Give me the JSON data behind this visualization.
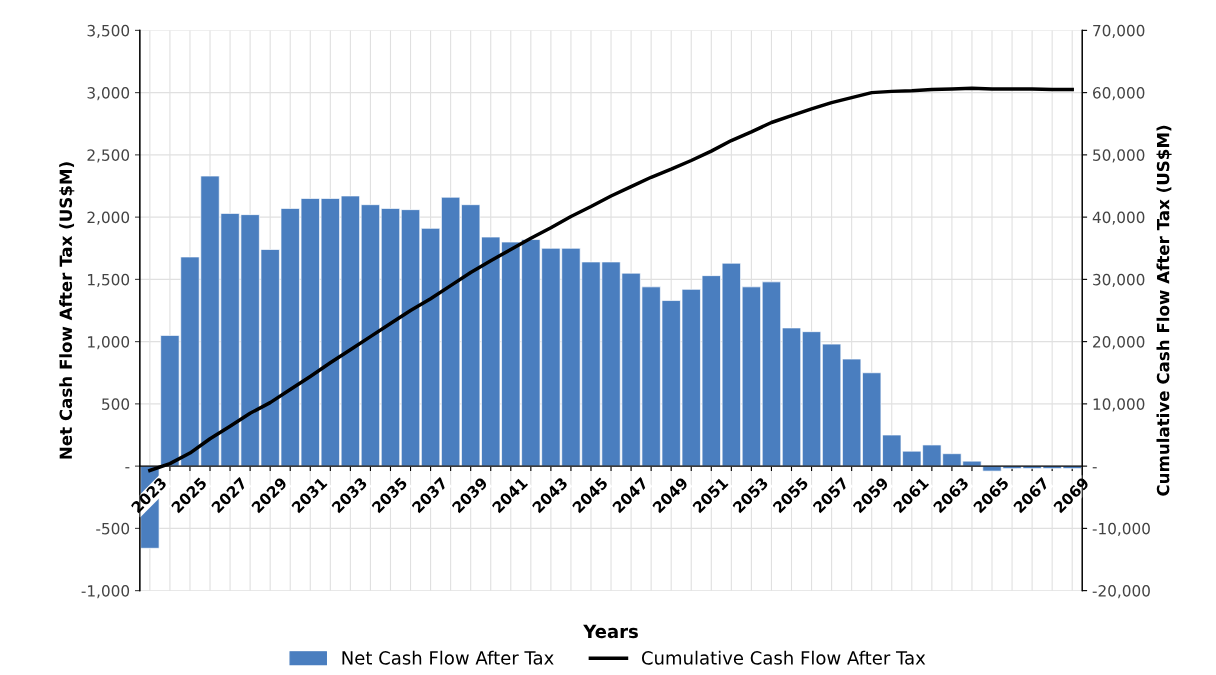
{
  "chart_data": {
    "type": "bar",
    "xlabel": "Years",
    "ylabel": "Net Cash Flow After Tax (US$M)",
    "y2label": "Cumulative Cash Flow After Tax (US$M)",
    "categories": [
      "2023",
      null,
      "2025",
      null,
      "2027",
      null,
      "2029",
      null,
      "2031",
      null,
      "2033",
      null,
      "2035",
      null,
      "2037",
      null,
      "2039",
      null,
      "2041",
      null,
      "2043",
      null,
      "2045",
      null,
      "2047",
      null,
      "2049",
      null,
      "2051",
      null,
      "2053",
      null,
      "2055",
      null,
      "2057",
      null,
      "2059",
      null,
      "2061",
      null,
      "2063",
      null,
      "2065",
      null,
      "2067",
      null,
      "2069"
    ],
    "series": [
      {
        "name": "Net Cash Flow After Tax",
        "color": "#4a7ebf",
        "values": [
          -660,
          1050,
          1680,
          2330,
          2030,
          2020,
          1740,
          2070,
          2150,
          2150,
          2170,
          2100,
          2070,
          2060,
          1910,
          2160,
          2100,
          1840,
          1800,
          1820,
          1750,
          1750,
          1640,
          1640,
          1550,
          1440,
          1330,
          1420,
          1530,
          1630,
          1440,
          1480,
          1110,
          1080,
          980,
          860,
          750,
          250,
          120,
          170,
          100,
          40,
          -40,
          -20,
          -20,
          -20,
          -20
        ]
      },
      {
        "name": "Cumulative Cash Flow After Tax",
        "type": "line",
        "axis": "y2",
        "color": "#000000",
        "values": [
          -700,
          400,
          2100,
          4400,
          6400,
          8500,
          10200,
          12300,
          14400,
          16600,
          18700,
          20800,
          22900,
          25000,
          26900,
          29000,
          31100,
          33000,
          34800,
          36600,
          38300,
          40100,
          41700,
          43400,
          44900,
          46400,
          47700,
          49100,
          50600,
          52300,
          53700,
          55200,
          56300,
          57400,
          58400,
          59200,
          60000,
          60200,
          60300,
          60500,
          60600,
          60700,
          60600,
          60600,
          60600,
          60500,
          60500
        ]
      }
    ],
    "ylim": [
      -1000,
      3500
    ],
    "yticks": [
      {
        "value": -1000,
        "label": "-1,000"
      },
      -500,
      {
        "value": 0,
        "label": "-"
      },
      500,
      {
        "value": 1000,
        "label": "1,000"
      },
      {
        "value": 1500,
        "label": "1,500"
      },
      {
        "value": 2000,
        "label": "2,000"
      },
      {
        "value": 2500,
        "label": "2,500"
      },
      {
        "value": 3000,
        "label": "3,000"
      },
      {
        "value": 3500,
        "label": "3,500"
      }
    ],
    "y2lim": [
      -20000,
      70000
    ],
    "y2ticks": [
      {
        "value": -20000,
        "label": "-20,000"
      },
      {
        "value": -10000,
        "label": "-10,000"
      },
      {
        "value": 0,
        "label": "-"
      },
      {
        "value": 10000,
        "label": "10,000"
      },
      {
        "value": 20000,
        "label": "20,000"
      },
      {
        "value": 30000,
        "label": "30,000"
      },
      {
        "value": 40000,
        "label": "40,000"
      },
      {
        "value": 50000,
        "label": "50,000"
      },
      {
        "value": 60000,
        "label": "60,000"
      },
      {
        "value": 70000,
        "label": "70,000"
      }
    ],
    "grid": true,
    "legend": "bottom",
    "marker": "none",
    "line_style": "solid"
  }
}
